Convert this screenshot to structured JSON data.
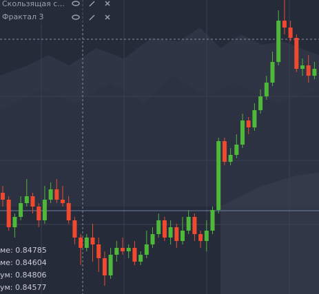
{
  "chart_data": {
    "type": "candlestick",
    "ylim": [
      0.84,
      0.84854
    ],
    "up_color": "#4fb83a",
    "down_color": "#ef4a2f",
    "open": [
      0.84294,
      0.84274,
      0.84194,
      0.84224,
      0.84264,
      0.84284,
      0.84254,
      0.84214,
      0.84274,
      0.84304,
      0.84274,
      0.84264,
      0.84214,
      0.84164,
      0.84134,
      0.84164,
      0.84144,
      0.84104,
      0.84054,
      0.84114,
      0.84134,
      0.84124,
      0.84134,
      0.84094,
      0.84114,
      0.84144,
      0.84174,
      0.84214,
      0.84164,
      0.84194,
      0.84154,
      0.84184,
      0.84224,
      0.84174,
      0.84154,
      0.84184,
      0.84244,
      0.84444,
      0.84384,
      0.84404,
      0.84434,
      0.84504,
      0.84484,
      0.84534,
      0.84574,
      0.84614,
      0.84674,
      0.84794,
      0.84774,
      0.84744,
      0.84654,
      0.84664,
      0.84634
    ],
    "high": [
      0.84314,
      0.84284,
      0.84234,
      0.84284,
      0.84334,
      0.84294,
      0.84264,
      0.84314,
      0.84324,
      0.84334,
      0.84314,
      0.84284,
      0.84224,
      0.84174,
      0.84174,
      0.84204,
      0.84164,
      0.84124,
      0.84134,
      0.84154,
      0.84164,
      0.84144,
      0.84154,
      0.84124,
      0.84184,
      0.84194,
      0.84234,
      0.84224,
      0.84214,
      0.84204,
      0.84224,
      0.84244,
      0.84234,
      0.84184,
      0.84214,
      0.84254,
      0.84454,
      0.84454,
      0.84424,
      0.84464,
      0.84524,
      0.84514,
      0.84554,
      0.84594,
      0.84634,
      0.84704,
      0.84824,
      0.84854,
      0.84794,
      0.84754,
      0.84684,
      0.84694,
      0.84674
    ],
    "low": [
      0.84254,
      0.84184,
      0.84164,
      0.84214,
      0.84254,
      0.84234,
      0.84194,
      0.84204,
      0.84264,
      0.84264,
      0.84254,
      0.84204,
      0.84144,
      0.84084,
      0.84124,
      0.84094,
      0.84064,
      0.84024,
      0.84044,
      0.84094,
      0.84114,
      0.84104,
      0.84084,
      0.84084,
      0.84104,
      0.84134,
      0.84164,
      0.84154,
      0.84144,
      0.84134,
      0.84144,
      0.84174,
      0.84154,
      0.84134,
      0.84124,
      0.84174,
      0.84234,
      0.84374,
      0.84374,
      0.84394,
      0.84424,
      0.84464,
      0.84474,
      0.84524,
      0.84564,
      0.84604,
      0.84664,
      0.84754,
      0.84734,
      0.84644,
      0.84634,
      0.84614,
      0.84624
    ],
    "close": [
      0.84274,
      0.84194,
      0.84224,
      0.84264,
      0.84284,
      0.84254,
      0.84214,
      0.84274,
      0.84304,
      0.84274,
      0.84264,
      0.84214,
      0.84164,
      0.84134,
      0.84164,
      0.84144,
      0.84104,
      0.84054,
      0.84114,
      0.84134,
      0.84124,
      0.84134,
      0.84094,
      0.84114,
      0.84144,
      0.84174,
      0.84214,
      0.84164,
      0.84194,
      0.84154,
      0.84184,
      0.84224,
      0.84174,
      0.84154,
      0.84184,
      0.84244,
      0.84444,
      0.84384,
      0.84404,
      0.84434,
      0.84504,
      0.84484,
      0.84534,
      0.84574,
      0.84614,
      0.84674,
      0.84794,
      0.84774,
      0.84744,
      0.84654,
      0.84664,
      0.84634,
      0.84654
    ]
  },
  "indicators": [
    "Скользящая с...",
    "Фрактал 3"
  ],
  "info": [
    "ме: 0.84785",
    "ме: 0.84604",
    "ум: 0.84806",
    "ум: 0.84577"
  ]
}
